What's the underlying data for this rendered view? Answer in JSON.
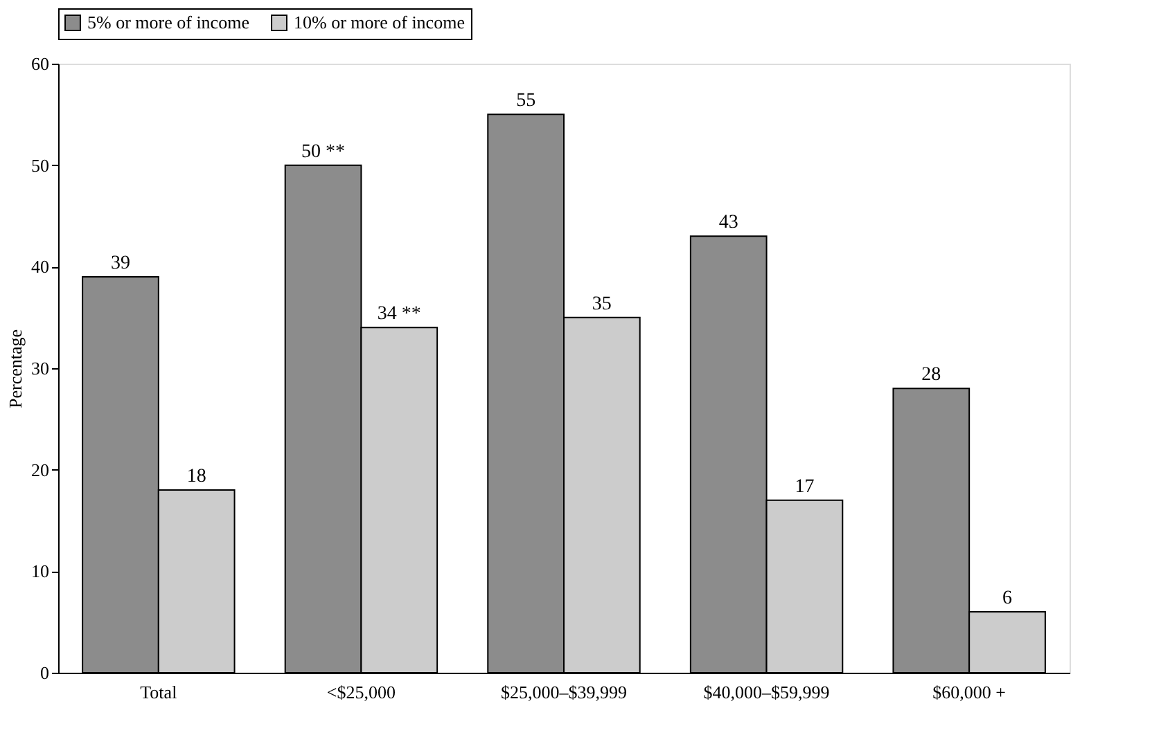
{
  "chart_data": {
    "type": "bar",
    "ylabel": "Percentage",
    "categories": [
      "Total",
      "<$25,000",
      "$25,000–$39,999",
      "$40,000–$59,999",
      "$60,000 +"
    ],
    "series": [
      {
        "name": "5% or more of income",
        "color": "#8c8c8c",
        "values": [
          39,
          50,
          55,
          43,
          28
        ],
        "value_labels": [
          "39",
          "50 **",
          "55",
          "43",
          "28"
        ]
      },
      {
        "name": "10% or more of income",
        "color": "#cccccc",
        "values": [
          18,
          34,
          35,
          17,
          6
        ],
        "value_labels": [
          "18",
          "34 **",
          "35",
          "17",
          "6"
        ]
      }
    ],
    "ylim": [
      0,
      60
    ],
    "yticks": [
      0,
      10,
      20,
      30,
      40,
      50,
      60
    ],
    "grid": false,
    "legend": "top"
  }
}
